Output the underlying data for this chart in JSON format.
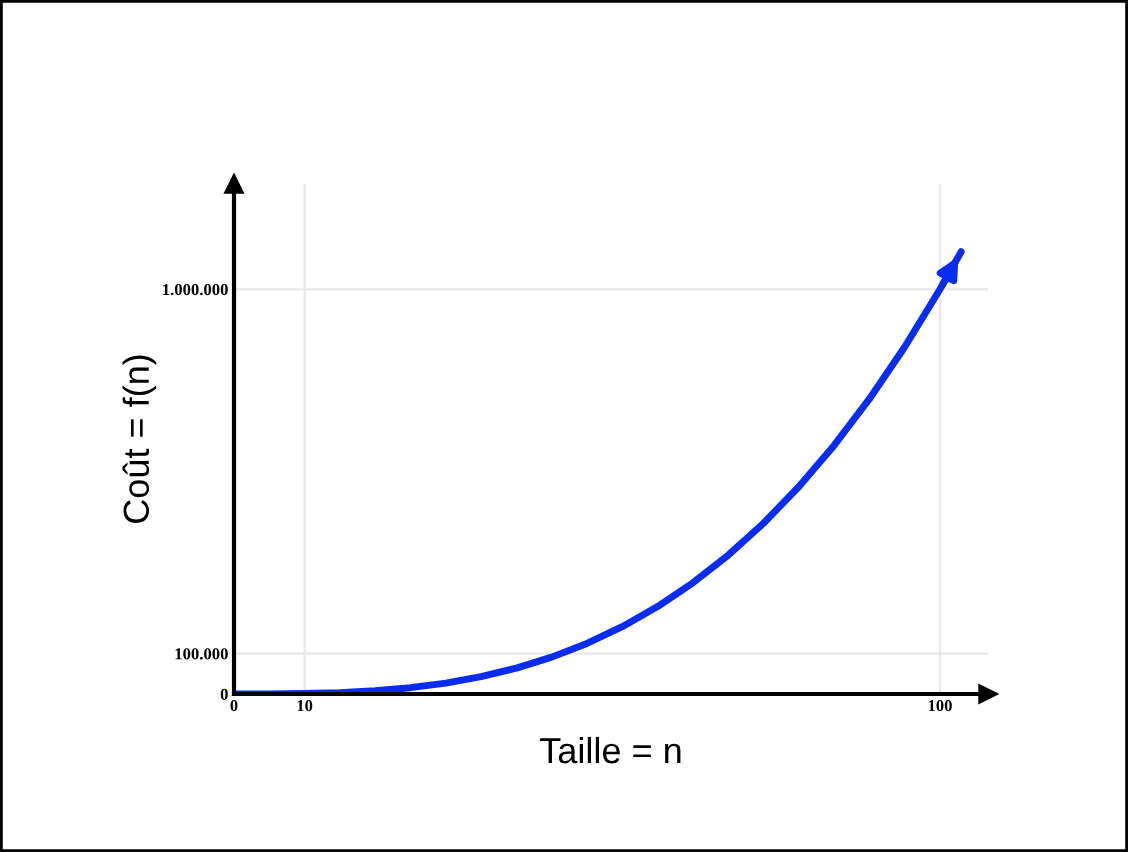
{
  "chart_data": {
    "type": "line",
    "xlabel": "Taille = n",
    "ylabel": "Coût = f(n)",
    "x": [
      0,
      5,
      10,
      15,
      20,
      25,
      30,
      35,
      40,
      45,
      50,
      55,
      60,
      65,
      70,
      75,
      80,
      85,
      90,
      95,
      100,
      103
    ],
    "series": [
      {
        "color": "#0a2bf0",
        "values": [
          0,
          125,
          1000,
          3375,
          8000,
          15625,
          27000,
          42875,
          64000,
          91125,
          125000,
          166375,
          216000,
          274625,
          343000,
          421875,
          512000,
          614125,
          729000,
          857375,
          1000000,
          1092727
        ]
      }
    ],
    "xlim": [
      0,
      106.8
    ],
    "ylim": [
      0,
      1260000
    ],
    "xticks": [
      0,
      10,
      100
    ],
    "yticks": [
      0,
      {
        "value": 100000,
        "label": "100.000"
      },
      {
        "value": 1000000,
        "label": "1.000.000"
      }
    ],
    "grid": true,
    "marker": "none",
    "line_style": "solid"
  }
}
